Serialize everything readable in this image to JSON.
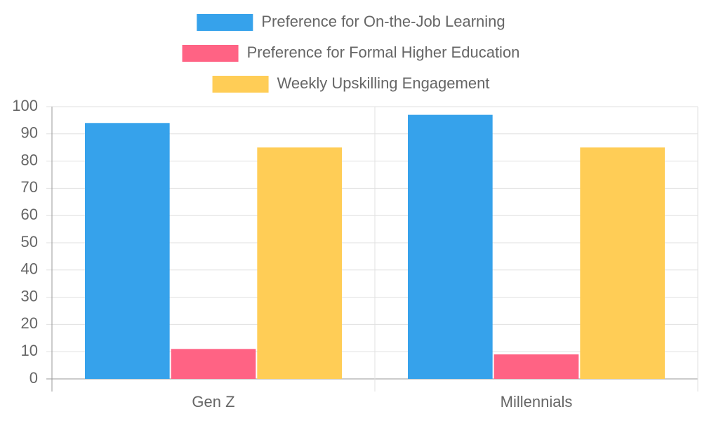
{
  "chart_data": {
    "type": "bar",
    "categories": [
      "Gen Z",
      "Millennials"
    ],
    "series": [
      {
        "name": "Preference for On-the-Job Learning",
        "color": "#36a2eb",
        "values": [
          94,
          97
        ]
      },
      {
        "name": "Preference for Formal Higher Education",
        "color": "#ff6384",
        "values": [
          11,
          9
        ]
      },
      {
        "name": "Weekly Upskilling Engagement",
        "color": "#ffcd56",
        "values": [
          85,
          85
        ]
      }
    ],
    "ylim": [
      0,
      100
    ],
    "yticks": [
      0,
      10,
      20,
      30,
      40,
      50,
      60,
      70,
      80,
      90,
      100
    ],
    "grid": true,
    "legend": "top"
  }
}
